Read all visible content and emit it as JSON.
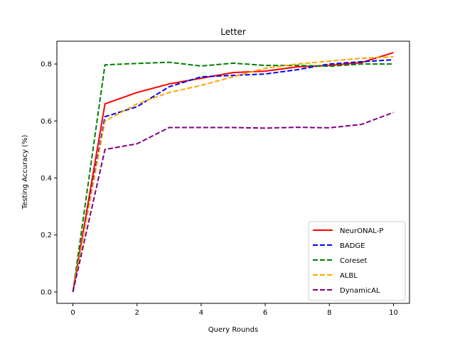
{
  "chart_data": {
    "type": "line",
    "title": "Letter",
    "xlabel": "Query Rounds",
    "ylabel": "Testing Accuracy (%)",
    "xlim": [
      -0.5,
      10.5
    ],
    "ylim": [
      -0.04,
      0.88
    ],
    "xticks": [
      0,
      2,
      4,
      6,
      8,
      10
    ],
    "yticks": [
      0.0,
      0.2,
      0.4,
      0.6,
      0.8
    ],
    "ytick_labels": [
      "0.0",
      "0.2",
      "0.4",
      "0.6",
      "0.8"
    ],
    "grid": false,
    "legend_position": "lower-right",
    "x": [
      0,
      1,
      2,
      3,
      4,
      5,
      6,
      7,
      8,
      9,
      10
    ],
    "series": [
      {
        "name": "NeurONAL-P",
        "color": "#ff0000",
        "style": "solid",
        "values": [
          0.0,
          0.66,
          0.7,
          0.73,
          0.75,
          0.77,
          0.775,
          0.79,
          0.795,
          0.805,
          0.84
        ]
      },
      {
        "name": "BADGE",
        "color": "#0000ff",
        "style": "dashed",
        "values": [
          0.0,
          0.615,
          0.65,
          0.72,
          0.755,
          0.76,
          0.765,
          0.78,
          0.8,
          0.808,
          0.815
        ]
      },
      {
        "name": "Coreset",
        "color": "#008000",
        "style": "dashed",
        "values": [
          0.0,
          0.797,
          0.802,
          0.806,
          0.793,
          0.803,
          0.795,
          0.795,
          0.792,
          0.8,
          0.8
        ]
      },
      {
        "name": "ALBL",
        "color": "#ffa500",
        "style": "dashed",
        "values": [
          0.0,
          0.6,
          0.66,
          0.7,
          0.725,
          0.755,
          0.785,
          0.8,
          0.81,
          0.82,
          0.825
        ]
      },
      {
        "name": "DynamicAL",
        "color": "#800080",
        "style": "dashed",
        "values": [
          0.0,
          0.5,
          0.52,
          0.577,
          0.577,
          0.577,
          0.575,
          0.578,
          0.576,
          0.588,
          0.63
        ]
      }
    ]
  }
}
